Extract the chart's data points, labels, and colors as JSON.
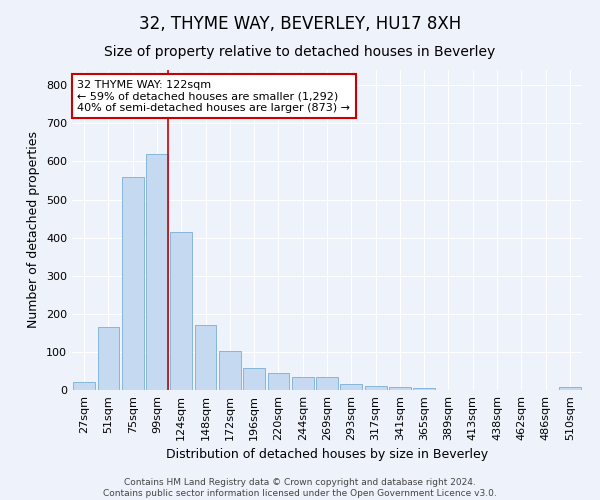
{
  "title1": "32, THYME WAY, BEVERLEY, HU17 8XH",
  "title2": "Size of property relative to detached houses in Beverley",
  "xlabel": "Distribution of detached houses by size in Beverley",
  "ylabel": "Number of detached properties",
  "categories": [
    "27sqm",
    "51sqm",
    "75sqm",
    "99sqm",
    "124sqm",
    "148sqm",
    "172sqm",
    "196sqm",
    "220sqm",
    "244sqm",
    "269sqm",
    "293sqm",
    "317sqm",
    "341sqm",
    "365sqm",
    "389sqm",
    "413sqm",
    "438sqm",
    "462sqm",
    "486sqm",
    "510sqm"
  ],
  "values": [
    20,
    165,
    560,
    620,
    415,
    170,
    103,
    57,
    45,
    33,
    33,
    15,
    10,
    8,
    5,
    0,
    0,
    0,
    0,
    0,
    7
  ],
  "bar_color": "#c5d9f0",
  "bar_edge_color": "#7aafd4",
  "highlight_line_color": "#cc0000",
  "annotation_text": "32 THYME WAY: 122sqm\n← 59% of detached houses are smaller (1,292)\n40% of semi-detached houses are larger (873) →",
  "annotation_box_color": "#ffffff",
  "annotation_box_edge": "#cc0000",
  "ylim": [
    0,
    840
  ],
  "yticks": [
    0,
    100,
    200,
    300,
    400,
    500,
    600,
    700,
    800
  ],
  "footer": "Contains HM Land Registry data © Crown copyright and database right 2024.\nContains public sector information licensed under the Open Government Licence v3.0.",
  "bg_color": "#eef2fa",
  "grid_color": "#ffffff",
  "title1_fontsize": 12,
  "title2_fontsize": 10,
  "xlabel_fontsize": 9,
  "ylabel_fontsize": 9,
  "tick_fontsize": 8,
  "footer_fontsize": 6.5,
  "annotation_fontsize": 8
}
